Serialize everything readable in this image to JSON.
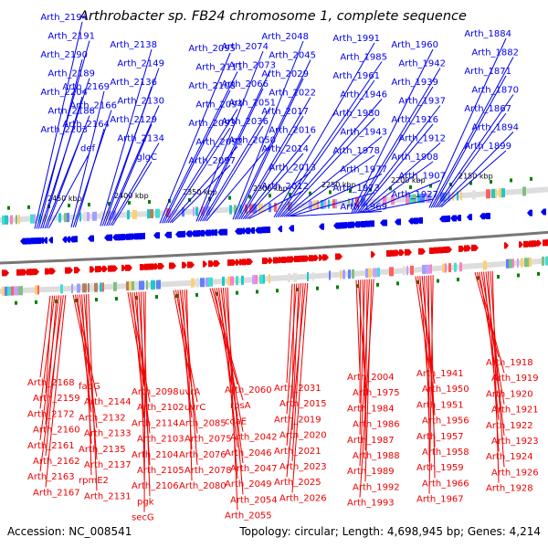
{
  "title": "Arthrobacter sp. FB24 chromosome 1, complete sequence",
  "accession": "Accession: NC_008541",
  "topology": "Topology: circular; Length: 4,698,945 bp; Genes: 4,214",
  "colors": {
    "plus_strand": "#0000ee",
    "minus_strand": "#ee0000",
    "backbone": "#888888",
    "tick": "#008000"
  },
  "ticks": [
    "2450 kbp",
    "2400 kbp",
    "2350 kbp",
    "2300 kbp",
    "2250 kbp",
    "2200 kbp",
    "2150 kbp"
  ],
  "top_genes": [
    "Arth_2194",
    "Arth_2191",
    "Arth_2190",
    "Arth_2189",
    "Arth_2204",
    "Arth_2188",
    "Arth_2203",
    "def",
    "Arth_2169",
    "Arth_2166",
    "Arth_2164",
    "Arth_2138",
    "Arth_2149",
    "Arth_2136",
    "Arth_2130",
    "Arth_2129",
    "Arth_2134",
    "glgC",
    "Arth_2095",
    "Arth_2111",
    "Arth_2108",
    "Arth_2094",
    "Arth_2093",
    "Arth_2092",
    "Arth_2097",
    "Arth_2074",
    "Arth_2073",
    "Arth_2066",
    "Arth_2051",
    "Arth_2036",
    "Arth_2050",
    "Arth_2048",
    "Arth_2045",
    "Arth_2029",
    "Arth_2022",
    "Arth_2017",
    "Arth_2016",
    "Arth_2014",
    "Arth_2013",
    "Arth_2012",
    "Arth_1991",
    "Arth_1985",
    "Arth_1961",
    "Arth_1946",
    "Arth_1980",
    "Arth_1943",
    "Arth_1978",
    "Arth_1977",
    "Arth_1973",
    "Arth_1969",
    "Arth_1960",
    "Arth_1942",
    "Arth_1939",
    "Arth_1937",
    "Arth_1916",
    "Arth_1912",
    "Arth_1908",
    "Arth_1907",
    "Arth_1927",
    "Arth_1884",
    "Arth_1882",
    "Arth_1871",
    "Arth_1870",
    "Arth_1867",
    "Arth_1894",
    "Arth_1899"
  ],
  "bottom_genes": [
    "Arth_2168",
    "Arth_2159",
    "Arth_2172",
    "Arth_2160",
    "Arth_2161",
    "Arth_2162",
    "Arth_2163",
    "Arth_2167",
    "fabG",
    "Arth_2144",
    "Arth_2132",
    "Arth_2133",
    "Arth_2135",
    "Arth_2137",
    "rpmE2",
    "Arth_2131",
    "Arth_2098",
    "Arth_2102",
    "Arth_2114",
    "Arth_2103",
    "Arth_2104",
    "Arth_2105",
    "Arth_2106",
    "pgk",
    "secG",
    "uvrA",
    "uvrC",
    "Arth_2085",
    "Arth_2075",
    "Arth_2076",
    "Arth_2078",
    "Arth_2080",
    "Arth_2060",
    "rpsA",
    "coaE",
    "Arth_2042",
    "Arth_2046",
    "Arth_2047",
    "Arth_2049",
    "Arth_2054",
    "Arth_2055",
    "Arth_2031",
    "Arth_2015",
    "Arth_2019",
    "Arth_2020",
    "Arth_2021",
    "Arth_2023",
    "Arth_2025",
    "Arth_2026",
    "Arth_2004",
    "Arth_1975",
    "Arth_1984",
    "Arth_1986",
    "Arth_1987",
    "Arth_1988",
    "Arth_1989",
    "Arth_1992",
    "Arth_1993",
    "Arth_1941",
    "Arth_1950",
    "Arth_1951",
    "Arth_1956",
    "Arth_1957",
    "Arth_1958",
    "Arth_1959",
    "Arth_1966",
    "Arth_1967",
    "Arth_1918",
    "Arth_1919",
    "Arth_1920",
    "Arth_1921",
    "Arth_1922",
    "Arth_1923",
    "Arth_1924",
    "Arth_1926",
    "Arth_1928"
  ]
}
